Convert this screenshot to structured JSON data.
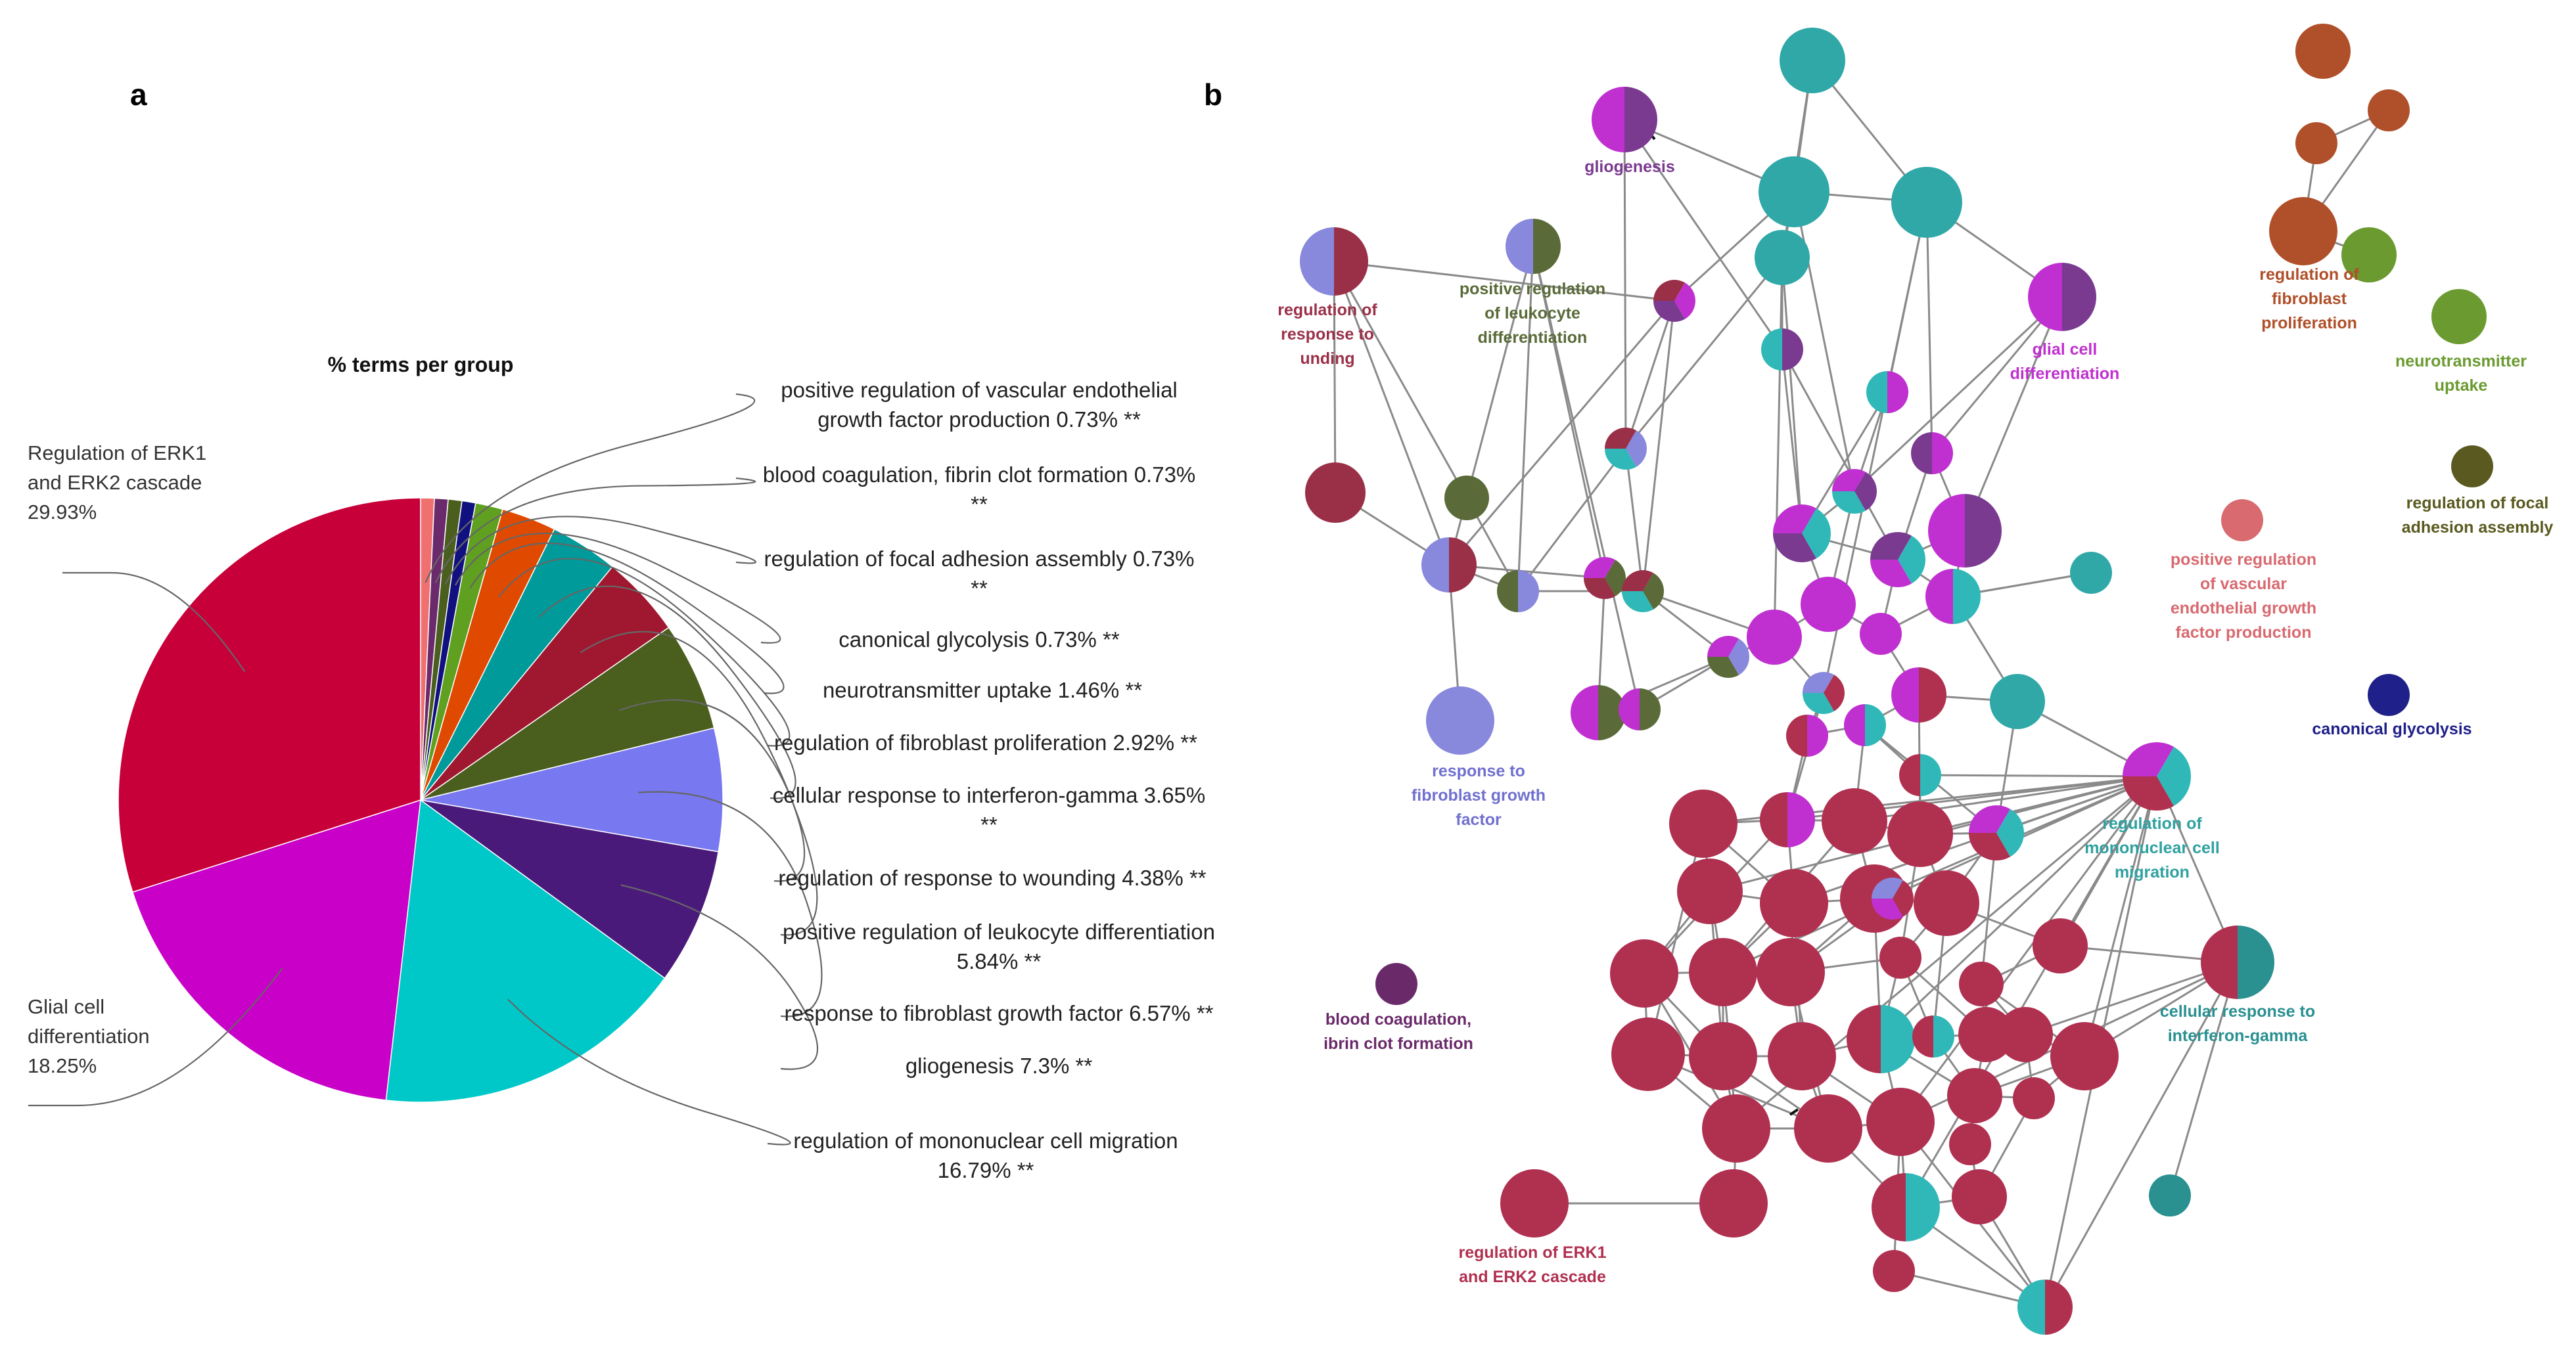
{
  "panel_labels": {
    "a": "a",
    "b": "b"
  },
  "chart_data": [
    {
      "type": "pie",
      "title": "% terms per group",
      "legend": "none",
      "slices": [
        {
          "name": "positive regulation of vascular endothelial growth factor production",
          "value": 0.73,
          "significance": "**",
          "color": "#f07070",
          "label_lines": [
            "positive regulation of vascular endothelial",
            "growth factor production 0.73% **"
          ]
        },
        {
          "name": "blood coagulation, fibrin clot formation",
          "value": 0.73,
          "significance": "**",
          "color": "#6b2a6b",
          "label_lines": [
            "blood coagulation, fibrin clot formation 0.73%",
            "**"
          ]
        },
        {
          "name": "regulation of focal adhesion assembly",
          "value": 0.73,
          "significance": "**",
          "color": "#4a5e1e",
          "label_lines": [
            "regulation of focal adhesion assembly 0.73%",
            "**"
          ]
        },
        {
          "name": "canonical glycolysis",
          "value": 0.73,
          "significance": "**",
          "color": "#101080",
          "label_lines": [
            "canonical glycolysis 0.73% **"
          ]
        },
        {
          "name": "neurotransmitter uptake",
          "value": 1.46,
          "significance": "**",
          "color": "#60a020",
          "label_lines": [
            "neurotransmitter uptake 1.46% **"
          ]
        },
        {
          "name": "regulation of fibroblast proliferation",
          "value": 2.92,
          "significance": "**",
          "color": "#e04a00",
          "label_lines": [
            "regulation of fibroblast proliferation 2.92% **"
          ]
        },
        {
          "name": "cellular response to interferon-gamma",
          "value": 3.65,
          "significance": "**",
          "color": "#009a9a",
          "label_lines": [
            "cellular response to interferon-gamma 3.65%",
            "**"
          ]
        },
        {
          "name": "regulation of response to wounding",
          "value": 4.38,
          "significance": "**",
          "color": "#a01830",
          "label_lines": [
            "regulation of response to wounding 4.38% **"
          ]
        },
        {
          "name": "positive regulation of leukocyte differentiation",
          "value": 5.84,
          "significance": "**",
          "color": "#4a5e1e",
          "label_lines": [
            "positive regulation of leukocyte differentiation",
            "5.84% **"
          ]
        },
        {
          "name": "response to fibroblast growth factor",
          "value": 6.57,
          "significance": "**",
          "color": "#7878f0",
          "label_lines": [
            "response to fibroblast growth factor 6.57% **"
          ]
        },
        {
          "name": "gliogenesis",
          "value": 7.3,
          "significance": "**",
          "color": "#4a1a7a",
          "label_lines": [
            "gliogenesis 7.3% **"
          ]
        },
        {
          "name": "regulation of mononuclear cell migration",
          "value": 16.79,
          "significance": "**",
          "color": "#00c8c8",
          "label_lines": [
            "regulation of mononuclear cell migration",
            "16.79% **"
          ]
        },
        {
          "name": "Glial cell differentiation",
          "value": 18.25,
          "significance": "",
          "color": "#c800c8",
          "label_lines": [
            "Glial cell",
            "differentiation",
            "18.25%"
          ]
        },
        {
          "name": "Regulation of ERK1 and ERK2 cascade",
          "value": 29.93,
          "significance": "",
          "color": "#c8003a",
          "label_lines": [
            "Regulation of ERK1",
            "and ERK2 cascade",
            "29.93%"
          ]
        }
      ]
    }
  ],
  "network": {
    "palette": {
      "erk": "#b03050",
      "glial": "#c030d0",
      "gliogenesis": "#7a3a90",
      "mononuclear": "#30b8b8",
      "teal": "#30a8a8",
      "wounding": "#9a3048",
      "leukocyte": "#5a6a38",
      "fgf": "#8888dd",
      "fibroblast": "#b0502a",
      "neuro": "#6a9a30",
      "focal": "#5a5a20",
      "vegf": "#d86a70",
      "glycolysis": "#20208a",
      "blood": "#6a2a6a",
      "ifn": "#2a9090"
    },
    "labels": [
      {
        "lines": [
          "gliogenesis"
        ],
        "color": "#7a3a90"
      },
      {
        "lines": [
          "regulation of",
          "response to",
          "unding"
        ],
        "color": "#9a3048"
      },
      {
        "lines": [
          "positive regulation",
          "of leukocyte",
          "differentiation"
        ],
        "color": "#5a6a38"
      },
      {
        "lines": [
          "glial cell",
          "differentiation"
        ],
        "color": "#c030d0"
      },
      {
        "lines": [
          "regulation of",
          "fibroblast",
          "proliferation"
        ],
        "color": "#b0502a"
      },
      {
        "lines": [
          "neurotransmitter",
          "uptake"
        ],
        "color": "#6a9a30"
      },
      {
        "lines": [
          "regulation of focal",
          "adhesion assembly"
        ],
        "color": "#5a5a20"
      },
      {
        "lines": [
          "positive regulation",
          "of vascular",
          "endothelial growth",
          "factor production"
        ],
        "color": "#d86a70"
      },
      {
        "lines": [
          "canonical glycolysis"
        ],
        "color": "#20208a"
      },
      {
        "lines": [
          "response to",
          "fibroblast growth",
          "factor"
        ],
        "color": "#7070d0"
      },
      {
        "lines": [
          "regulation of",
          "mononuclear cell",
          "migration"
        ],
        "color": "#30a0a0"
      },
      {
        "lines": [
          "cellular response to",
          "interferon-gamma"
        ],
        "color": "#2a9090"
      },
      {
        "lines": [
          "blood coagulation,",
          "ibrin clot formation"
        ],
        "color": "#6a2a6a"
      },
      {
        "lines": [
          "regulation of ERK1",
          "and ERK2 cascade"
        ],
        "color": "#b03050"
      }
    ]
  }
}
